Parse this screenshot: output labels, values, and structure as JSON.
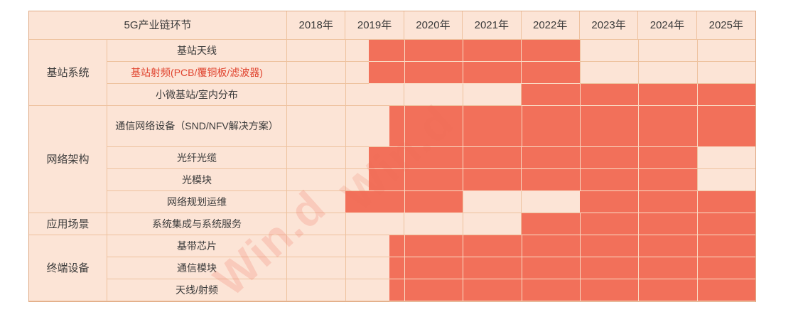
{
  "watermark_text": "Win.d",
  "colors": {
    "bar_fill": "#f2705a",
    "cell_bg": "#fce4d6",
    "grid_line": "#eec29f",
    "bar_separator": "#fadbc4",
    "red_label_text": "#e0432e",
    "text": "#3a3a3a"
  },
  "chart_data": {
    "type": "gantt-table",
    "title": "5G产业链环节",
    "columns": [
      "2018年",
      "2019年",
      "2020年",
      "2021年",
      "2022年",
      "2023年",
      "2024年",
      "2025年"
    ],
    "x_range": [
      2018,
      2026
    ],
    "groups": [
      {
        "name": "基站系统",
        "rows": [
          {
            "label": "基站天线",
            "red": false,
            "bars": [
              [
                2019.4,
                2023.0
              ]
            ]
          },
          {
            "label": "基站射频(PCB/覆铜板/滤波器)",
            "red": true,
            "bars": [
              [
                2019.4,
                2023.0
              ]
            ]
          },
          {
            "label": "小微基站/室内分布",
            "red": false,
            "bars": [
              [
                2022.0,
                2026.0
              ]
            ]
          }
        ]
      },
      {
        "name": "网络架构",
        "rows": [
          {
            "label": "通信网络设备（SND/NFV解决方案）",
            "red": false,
            "bars": [
              [
                2019.75,
                2026.0
              ]
            ]
          },
          {
            "label": "光纤光缆",
            "red": false,
            "bars": [
              [
                2019.4,
                2025.0
              ]
            ]
          },
          {
            "label": "光模块",
            "red": false,
            "bars": [
              [
                2019.4,
                2025.0
              ]
            ]
          },
          {
            "label": "网络规划运维",
            "red": false,
            "bars": [
              [
                2019.0,
                2021.0
              ],
              [
                2023.0,
                2026.0
              ]
            ]
          }
        ]
      },
      {
        "name": "应用场景",
        "rows": [
          {
            "label": "系统集成与系统服务",
            "red": false,
            "bars": [
              [
                2022.0,
                2026.0
              ]
            ]
          }
        ]
      },
      {
        "name": "终端设备",
        "rows": [
          {
            "label": "基带芯片",
            "red": false,
            "bars": [
              [
                2019.75,
                2026.0
              ]
            ]
          },
          {
            "label": "通信模块",
            "red": false,
            "bars": [
              [
                2019.75,
                2026.0
              ]
            ]
          },
          {
            "label": "天线/射频",
            "red": false,
            "bars": [
              [
                2019.75,
                2026.0
              ]
            ]
          }
        ]
      }
    ]
  }
}
